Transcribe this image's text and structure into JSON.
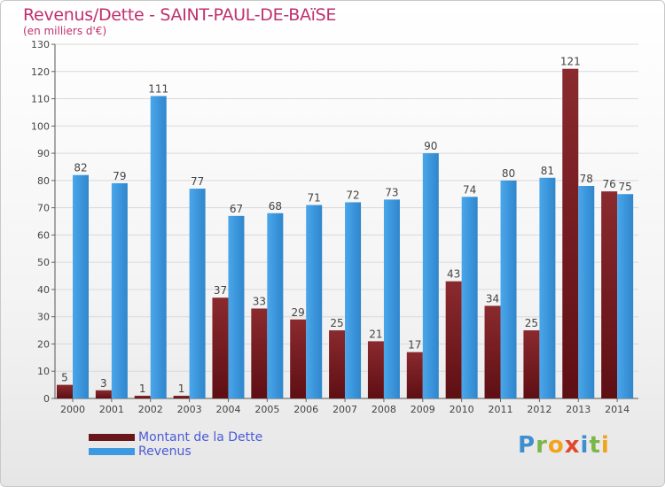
{
  "title": "Revenus/Dette - SAINT-PAUL-DE-BAïSE",
  "subtitle": "(en milliers d'€)",
  "logo": "Proxiti",
  "colors": {
    "dette": "#7a1f24",
    "revenus": "#3d9ae0",
    "title": "#c0306f",
    "legend_text": "#4a5bd6"
  },
  "chart_data": {
    "type": "bar",
    "categories": [
      "2000",
      "2001",
      "2002",
      "2003",
      "2004",
      "2005",
      "2006",
      "2007",
      "2008",
      "2009",
      "2010",
      "2011",
      "2012",
      "2013",
      "2014"
    ],
    "series": [
      {
        "name": "Montant de la Dette",
        "values": [
          5,
          3,
          1,
          1,
          37,
          33,
          29,
          25,
          21,
          17,
          43,
          34,
          25,
          121,
          76
        ]
      },
      {
        "name": "Revenus",
        "values": [
          82,
          79,
          111,
          77,
          67,
          68,
          71,
          72,
          73,
          90,
          74,
          80,
          81,
          78,
          75
        ]
      }
    ],
    "ylim": [
      0,
      130
    ],
    "yticks": [
      0,
      10,
      20,
      30,
      40,
      50,
      60,
      70,
      80,
      90,
      100,
      110,
      120,
      130
    ],
    "grid": true,
    "legend_position": "bottom-left"
  }
}
